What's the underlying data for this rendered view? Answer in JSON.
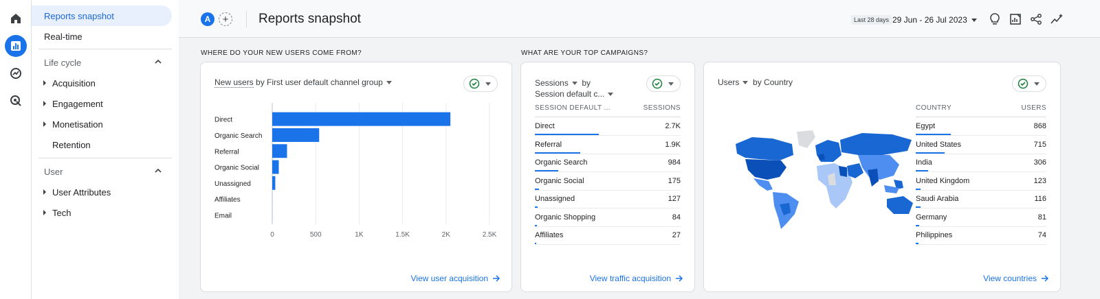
{
  "header": {
    "title": "Reports snapshot",
    "compare_avatar": "A",
    "date_chip": "Last 28 days",
    "date_range": "29 Jun - 26 Jul 2023"
  },
  "sidebar": {
    "top_items": [
      {
        "label": "Reports snapshot",
        "active": true
      },
      {
        "label": "Real-time"
      }
    ],
    "sections": [
      {
        "label": "Life cycle",
        "items": [
          {
            "label": "Acquisition",
            "expandable": true
          },
          {
            "label": "Engagement",
            "expandable": true
          },
          {
            "label": "Monetisation",
            "expandable": true
          },
          {
            "label": "Retention",
            "expandable": false
          }
        ]
      },
      {
        "label": "User",
        "items": [
          {
            "label": "User Attributes",
            "expandable": true
          },
          {
            "label": "Tech",
            "expandable": true
          }
        ]
      }
    ]
  },
  "sections": {
    "left": "WHERE DO YOUR NEW USERS COME FROM?",
    "right": "WHAT ARE YOUR TOP CAMPAIGNS?"
  },
  "cards": {
    "acquisition": {
      "title_metric": "New users",
      "title_by": " by ",
      "title_dimension": "First user default channel group",
      "link": "View user acquisition"
    },
    "campaigns": {
      "title_metric": "Sessions",
      "title_by": "by",
      "title_dimension": "Session default c...",
      "col_dim": "SESSION DEFAULT ...",
      "col_val": "SESSIONS",
      "rows": [
        {
          "label": "Direct",
          "value": "2.7K",
          "share": 0.44
        },
        {
          "label": "Referral",
          "value": "1.9K",
          "share": 0.31
        },
        {
          "label": "Organic Search",
          "value": "984",
          "share": 0.16
        },
        {
          "label": "Organic Social",
          "value": "175",
          "share": 0.028
        },
        {
          "label": "Unassigned",
          "value": "127",
          "share": 0.02
        },
        {
          "label": "Organic Shopping",
          "value": "84",
          "share": 0.014
        },
        {
          "label": "Affiliates",
          "value": "27",
          "share": 0.005
        }
      ],
      "link": "View traffic acquisition"
    },
    "countries": {
      "title_metric": "Users",
      "title_by": "by Country",
      "col_dim": "COUNTRY",
      "col_val": "USERS",
      "rows": [
        {
          "label": "Egypt",
          "value": "868",
          "share": 0.27
        },
        {
          "label": "United States",
          "value": "715",
          "share": 0.22
        },
        {
          "label": "India",
          "value": "306",
          "share": 0.095
        },
        {
          "label": "United Kingdom",
          "value": "123",
          "share": 0.038
        },
        {
          "label": "Saudi Arabia",
          "value": "116",
          "share": 0.036
        },
        {
          "label": "Germany",
          "value": "81",
          "share": 0.025
        },
        {
          "label": "Philippines",
          "value": "74",
          "share": 0.023
        }
      ],
      "link": "View countries"
    }
  },
  "chart_data": {
    "type": "bar",
    "orientation": "horizontal",
    "categories": [
      "Direct",
      "Organic Search",
      "Referral",
      "Organic Social",
      "Unassigned",
      "Affiliates",
      "Email"
    ],
    "values": [
      2050,
      540,
      170,
      75,
      35,
      5,
      3
    ],
    "xlim": [
      0,
      2500
    ],
    "xticks": [
      "0",
      "500",
      "1K",
      "1.5K",
      "2K",
      "2.5K"
    ],
    "grid": true,
    "color": "#1a73e8"
  },
  "colors": {
    "accent": "#1a73e8",
    "map_dark": "#1967d2",
    "map_mid": "#4d8ef0",
    "map_light": "#a9c8f8",
    "map_none": "#dadce0"
  }
}
